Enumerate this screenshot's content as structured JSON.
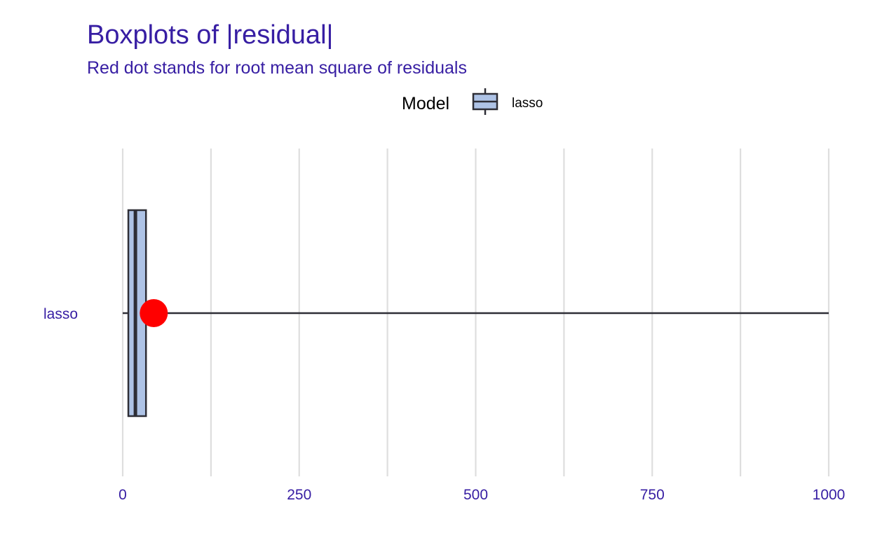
{
  "chart_data": {
    "type": "boxplot",
    "title_prefix": "Boxplots of ",
    "title_var": "residual",
    "subtitle": "Red dot stands for root mean square of residuals",
    "legend": {
      "title": "Model",
      "entries": [
        "lasso"
      ],
      "position": "top"
    },
    "orientation": "horizontal",
    "xlim": [
      0,
      1000
    ],
    "x_ticks": [
      0,
      250,
      500,
      750,
      1000
    ],
    "x_tick_labels": [
      "0",
      "250",
      "500",
      "750",
      "1000"
    ],
    "grid": true,
    "categories": [
      "lasso"
    ],
    "boxes": [
      {
        "name": "lasso",
        "whisker_low": 0,
        "q1": 8,
        "median": 18,
        "q3": 33,
        "whisker_high": 1000,
        "rmse": 44
      }
    ]
  },
  "colors": {
    "title": "#371EA3",
    "box_fill": "#AEC3E6",
    "box_stroke": "#2E2E36",
    "rmse_point": "#FF0000",
    "grid": "#DEDEDE",
    "legend_text": "#000000"
  }
}
